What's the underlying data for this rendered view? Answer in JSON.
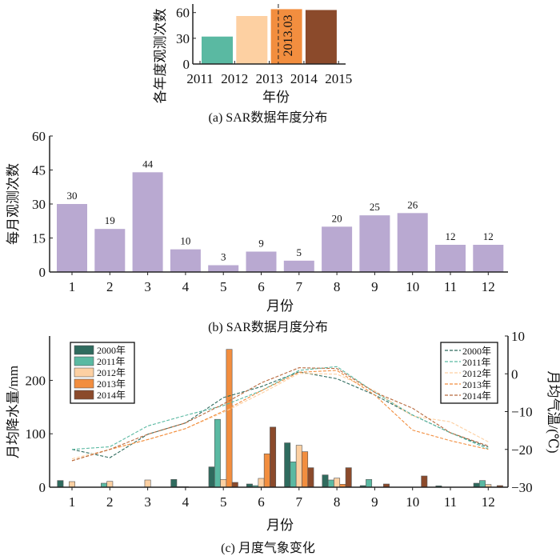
{
  "chart_data": [
    {
      "type": "bar",
      "caption": "(a) SAR数据年度分布",
      "xlabel": "年份",
      "ylabel": "各年度观测次数",
      "x_ticks": [
        "2011",
        "2012",
        "2013",
        "2014",
        "2015"
      ],
      "categories": [
        "2011",
        "2012",
        "2013",
        "2014"
      ],
      "values": [
        32,
        56,
        64,
        63
      ],
      "colors": [
        "#5ab9a2",
        "#fdd0a2",
        "#f28e3f",
        "#8b4a2b"
      ],
      "ylim": [
        0,
        70
      ],
      "y_ticks": [
        0,
        30,
        60
      ],
      "annotation": {
        "text": "2013.03",
        "x": 2013.03,
        "style": "dashed vertical line"
      }
    },
    {
      "type": "bar",
      "caption": "(b) SAR数据月度分布",
      "xlabel": "月份",
      "ylabel": "每月观测次数",
      "categories": [
        "1",
        "2",
        "3",
        "4",
        "5",
        "6",
        "7",
        "8",
        "9",
        "10",
        "11",
        "12"
      ],
      "values": [
        30,
        19,
        44,
        10,
        3,
        9,
        5,
        20,
        25,
        26,
        12,
        12
      ],
      "color": "#b9a9d1",
      "ylim": [
        0,
        60
      ],
      "y_ticks": [
        0,
        15,
        30,
        45,
        60
      ],
      "data_labels": true
    },
    {
      "type": "bar+line",
      "caption": "(c) 月度气象变化",
      "xlabel": "月份",
      "ylabel": "月均降水量/mm",
      "ylabel_right": "月均气温/(℃)",
      "categories": [
        "1",
        "2",
        "3",
        "4",
        "5",
        "6",
        "7",
        "8",
        "9",
        "10",
        "11",
        "12"
      ],
      "ylim": [
        0,
        283
      ],
      "y_ticks": [
        0,
        100,
        200
      ],
      "ylim_right": [
        -30,
        10
      ],
      "y_ticks_right": [
        -30,
        -20,
        -10,
        0,
        10
      ],
      "legend_bars": "top-left",
      "legend_lines": "top-right",
      "bar_series": [
        {
          "name": "2000年",
          "color": "#2f6b5e",
          "values": [
            12.5,
            0,
            0,
            14.5,
            38,
            6,
            83,
            23,
            3,
            0,
            2.5,
            7.5
          ]
        },
        {
          "name": "2011年",
          "color": "#5ab9a2",
          "values": [
            0,
            7.5,
            0,
            1,
            127,
            3,
            47.5,
            13.5,
            14.5,
            0,
            0,
            12.5
          ]
        },
        {
          "name": "2012年",
          "color": "#fdd0a2",
          "values": [
            10.5,
            11,
            13.5,
            1,
            14.5,
            16.5,
            78.5,
            17,
            0,
            0,
            0,
            5
          ]
        },
        {
          "name": "2013年",
          "color": "#f28e3f",
          "values": [
            0,
            0,
            0,
            0,
            258,
            62.5,
            66.5,
            5.5,
            0,
            0,
            0,
            0
          ]
        },
        {
          "name": "2014年",
          "color": "#8b4a2b",
          "values": [
            0,
            0,
            0,
            0,
            9,
            112.5,
            36.5,
            36.5,
            6,
            21,
            0,
            3
          ]
        }
      ],
      "line_series": [
        {
          "name": "2000年",
          "color": "#2f6b5e",
          "values": [
            -20,
            -22.2,
            -16,
            -13,
            -6.3,
            -3.4,
            0.5,
            -1.3,
            -5.6,
            -10.9,
            -15.6,
            -19.4
          ]
        },
        {
          "name": "2011年",
          "color": "#5ab9a2",
          "values": [
            -20,
            -19.3,
            -13.8,
            -11,
            -8.4,
            -4.5,
            0.9,
            1.9,
            -4.9,
            -10.9,
            -15.6,
            -19.9
          ]
        },
        {
          "name": "2012年",
          "color": "#fdd0a2",
          "values": [
            -22.5,
            -20,
            -17.4,
            -14.5,
            -10.2,
            -5.2,
            0.1,
            -0.1,
            -4.5,
            -11.2,
            -12.7,
            -18
          ]
        },
        {
          "name": "2013年",
          "color": "#f28e3f",
          "values": [
            -23,
            -20,
            -17.4,
            -14.5,
            -9.9,
            -4.5,
            0.4,
            0.9,
            -5.6,
            -14.9,
            -17.7,
            -20
          ]
        },
        {
          "name": "2014年",
          "color": "#b86a3e",
          "values": [
            -23,
            -20,
            -16,
            -13,
            -8,
            -2.4,
            1.6,
            1.4,
            -4.9,
            -9.1,
            -15.6,
            -19.1
          ]
        }
      ]
    }
  ]
}
